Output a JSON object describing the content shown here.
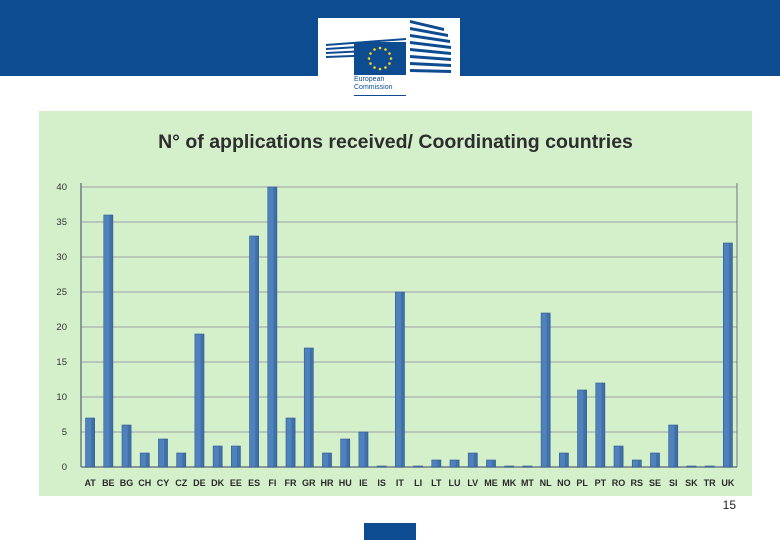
{
  "header": {
    "logo": {
      "name": "european-commission-logo",
      "text_line1": "European",
      "text_line2": "Commission"
    }
  },
  "colors": {
    "header_band": "#0e4c92",
    "chart_background": "#d4f0cb",
    "bar_fill": "#4f81bd",
    "bar_dark": "#2e5a8e",
    "gridline": "#9aa0a6"
  },
  "chart_data": {
    "type": "bar",
    "title": "N° of applications received/ Coordinating countries",
    "xlabel": "",
    "ylabel": "",
    "ylim": [
      0,
      40
    ],
    "yticks": [
      0,
      5,
      10,
      15,
      20,
      25,
      30,
      35,
      40
    ],
    "grid": true,
    "legend": "none",
    "categories": [
      "AT",
      "BE",
      "BG",
      "CH",
      "CY",
      "CZ",
      "DE",
      "DK",
      "EE",
      "ES",
      "FI",
      "FR",
      "GR",
      "HR",
      "HU",
      "IE",
      "IS",
      "IT",
      "LI",
      "LT",
      "LU",
      "LV",
      "ME",
      "MK",
      "MT",
      "NL",
      "NO",
      "PL",
      "PT",
      "RO",
      "RS",
      "SE",
      "SI",
      "SK",
      "TR",
      "UK"
    ],
    "values": [
      7,
      36,
      6,
      2,
      4,
      2,
      19,
      3,
      3,
      33,
      40,
      7,
      17,
      2,
      4,
      5,
      0,
      25,
      0,
      1,
      1,
      2,
      1,
      0,
      0,
      22,
      2,
      11,
      12,
      3,
      1,
      2,
      6,
      0,
      0,
      32
    ]
  },
  "footer": {
    "page_number": "15"
  }
}
